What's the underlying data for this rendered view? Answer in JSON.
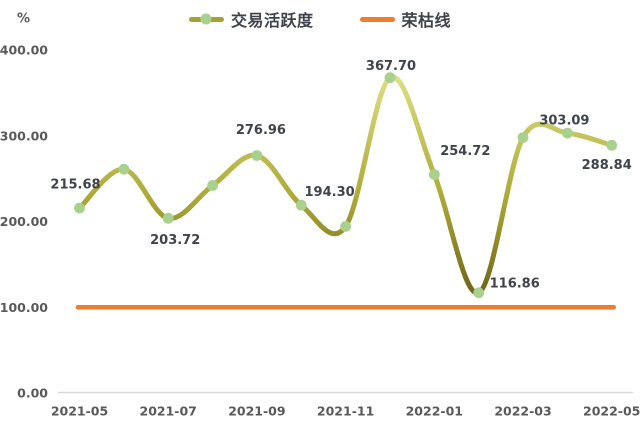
{
  "chart": {
    "unit_label": "%",
    "legend": {
      "items": [
        {
          "label": "交易活跃度",
          "swatch": "line-with-marker",
          "line_color": "#a6a232",
          "marker_color": "#a9d18e"
        },
        {
          "label": "荣枯线",
          "swatch": "line",
          "line_color": "#ed7d31"
        }
      ]
    }
  },
  "chart_data": {
    "type": "line",
    "title": "",
    "categories": [
      "2021-05",
      "2021-06",
      "2021-07",
      "2021-08",
      "2021-09",
      "2021-10",
      "2021-11",
      "2021-12",
      "2022-01",
      "2022-02",
      "2022-03",
      "2022-04",
      "2022-05"
    ],
    "x_axis_tick_labels": [
      "2021-05",
      "2021-07",
      "2021-09",
      "2021-11",
      "2022-01",
      "2022-03",
      "2022-05"
    ],
    "y_axis_tick_labels": [
      "400.00",
      "300.00",
      "200.00",
      "100.00",
      "0.00"
    ],
    "y_axis_unit": "%",
    "ylim": [
      0,
      400
    ],
    "grid": false,
    "legend_position": "top-center",
    "series": [
      {
        "name": "交易活跃度",
        "type": "smooth-line",
        "values": [
          215.68,
          261,
          203.72,
          242,
          276.96,
          219,
          194.3,
          367.7,
          254.72,
          116.86,
          298,
          303.09,
          288.84
        ],
        "data_labels": [
          "215.68",
          null,
          "203.72",
          null,
          "276.96",
          null,
          "194.30",
          "367.70",
          "254.72",
          "116.86",
          null,
          "303.09",
          "288.84"
        ],
        "marker_color": "#a9d18e",
        "line_gradient": [
          "#e0e48a",
          "#aeab38",
          "#6b6114"
        ]
      },
      {
        "name": "荣枯线",
        "type": "constant-line",
        "value": 100,
        "color": "#ed7d31"
      }
    ],
    "label_offsets": {
      "0": [
        -4,
        -23
      ],
      "2": [
        7,
        22
      ],
      "4": [
        4,
        -25
      ],
      "6": [
        -16,
        -34
      ],
      "7": [
        1,
        -11
      ],
      "8": [
        31,
        -23
      ],
      "9": [
        36,
        -9
      ],
      "11": [
        -3,
        -12
      ],
      "12": [
        -5,
        20
      ]
    }
  },
  "colors": {
    "background": "#ffffff",
    "axis_line": "#d9d9d9",
    "tick_label": "#595959",
    "data_label": "#3f434c",
    "legend_label": "#3f434c"
  }
}
